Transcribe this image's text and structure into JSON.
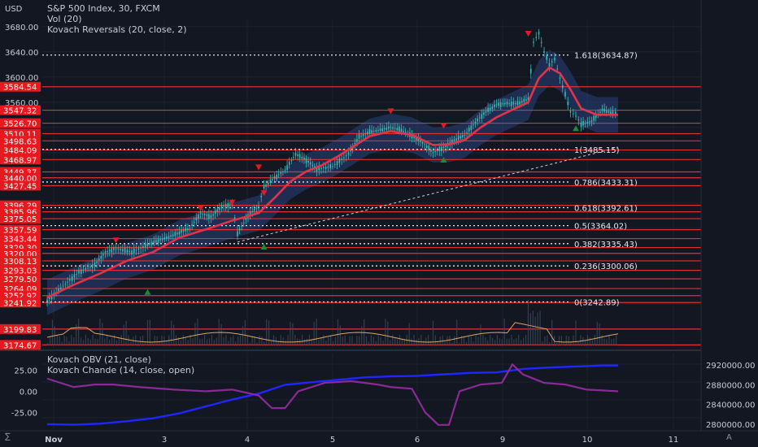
{
  "header": {
    "currency": "USD",
    "title": "S&P 500 Index, 30, FXCM",
    "indicators": [
      "Vol (20)",
      "Kovach Reversals (20, close, 2)"
    ]
  },
  "subpanel": {
    "indicators": [
      "Kovach OBV (21, close)",
      "Kovach Chande (14, close, open)"
    ]
  },
  "bottom_left_label": "∑",
  "auto_label": "A",
  "colors": {
    "background": "#131722",
    "level_line": "#e03030",
    "label_bg": "#e8191e",
    "ma_line": "#e0344a",
    "band_fill": "#2a3f7a",
    "candle": "#3dbab3",
    "volume_line": "#d9a46a",
    "obv_line": "#1f26ff",
    "chande_line": "#8a2a96",
    "fib_line": "#e6e8ee"
  },
  "chart_data": [
    {
      "type": "line",
      "title": "S&P 500 Index, 30, FXCM",
      "x_ticks": [
        "Nov",
        "3",
        "4",
        "5",
        "6",
        "9",
        "10",
        "11"
      ],
      "y_ticks": [
        "3680.00",
        "3640.00",
        "3600.00",
        "3560.00"
      ],
      "ylim": [
        3170,
        3690
      ],
      "price_series": [
        [
          0,
          3245
        ],
        [
          6,
          3268
        ],
        [
          12,
          3290
        ],
        [
          18,
          3302
        ],
        [
          22,
          3322
        ],
        [
          26,
          3328
        ],
        [
          32,
          3322
        ],
        [
          38,
          3334
        ],
        [
          46,
          3346
        ],
        [
          54,
          3360
        ],
        [
          58,
          3384
        ],
        [
          62,
          3378
        ],
        [
          66,
          3395
        ],
        [
          70,
          3398
        ],
        [
          72,
          3352
        ],
        [
          76,
          3380
        ],
        [
          80,
          3395
        ],
        [
          82,
          3425
        ],
        [
          86,
          3440
        ],
        [
          90,
          3452
        ],
        [
          94,
          3478
        ],
        [
          98,
          3468
        ],
        [
          102,
          3454
        ],
        [
          108,
          3458
        ],
        [
          114,
          3478
        ],
        [
          118,
          3505
        ],
        [
          122,
          3513
        ],
        [
          126,
          3516
        ],
        [
          130,
          3520
        ],
        [
          134,
          3516
        ],
        [
          138,
          3506
        ],
        [
          142,
          3496
        ],
        [
          146,
          3480
        ],
        [
          150,
          3488
        ],
        [
          154,
          3500
        ],
        [
          158,
          3508
        ],
        [
          162,
          3528
        ],
        [
          166,
          3545
        ],
        [
          170,
          3556
        ],
        [
          174,
          3558
        ],
        [
          178,
          3558
        ],
        [
          182,
          3565
        ],
        [
          184,
          3655
        ],
        [
          186,
          3670
        ],
        [
          188,
          3640
        ],
        [
          190,
          3620
        ],
        [
          192,
          3628
        ],
        [
          194,
          3598
        ],
        [
          196,
          3572
        ],
        [
          198,
          3545
        ],
        [
          200,
          3538
        ],
        [
          202,
          3525
        ],
        [
          206,
          3530
        ],
        [
          210,
          3548
        ],
        [
          214,
          3542
        ],
        [
          216,
          3545
        ]
      ],
      "ma_series": [
        [
          0,
          3250
        ],
        [
          10,
          3270
        ],
        [
          20,
          3288
        ],
        [
          30,
          3308
        ],
        [
          40,
          3322
        ],
        [
          50,
          3345
        ],
        [
          60,
          3358
        ],
        [
          70,
          3372
        ],
        [
          80,
          3384
        ],
        [
          86,
          3408
        ],
        [
          92,
          3434
        ],
        [
          98,
          3450
        ],
        [
          104,
          3460
        ],
        [
          110,
          3474
        ],
        [
          116,
          3490
        ],
        [
          122,
          3506
        ],
        [
          130,
          3514
        ],
        [
          138,
          3508
        ],
        [
          146,
          3492
        ],
        [
          152,
          3493
        ],
        [
          158,
          3500
        ],
        [
          164,
          3520
        ],
        [
          170,
          3536
        ],
        [
          176,
          3548
        ],
        [
          182,
          3560
        ],
        [
          186,
          3598
        ],
        [
          190,
          3615
        ],
        [
          194,
          3606
        ],
        [
          198,
          3580
        ],
        [
          202,
          3550
        ],
        [
          208,
          3540
        ],
        [
          216,
          3540
        ]
      ],
      "series": [
        {
          "name": "Vol (20)"
        },
        {
          "name": "Kovach Reversals (20, close, 2)"
        }
      ]
    },
    {
      "type": "line",
      "title": "Support / resistance levels",
      "levels": [
        "3584.54",
        "3547.32",
        "3526.70",
        "3510.11",
        "3498.63",
        "3484.09",
        "3468.97",
        "3449.37",
        "3440.00",
        "3427.45",
        "3396.29",
        "3385.96",
        "3375.05",
        "3357.59",
        "3343.44",
        "3329.30",
        "3320.00",
        "3308.13",
        "3293.03",
        "3279.50",
        "3264.09",
        "3252.92",
        "3241.92",
        "3199.83",
        "3174.67"
      ]
    },
    {
      "type": "line",
      "title": "Fibonacci retracement",
      "levels": [
        {
          "ratio": "1.618",
          "value": 3634.87,
          "label": "1.618(3634.87)"
        },
        {
          "ratio": "1",
          "value": 3485.15,
          "label": "1(3485.15)"
        },
        {
          "ratio": "0.786",
          "value": 3433.31,
          "label": "0.786(3433.31)"
        },
        {
          "ratio": "0.618",
          "value": 3392.61,
          "label": "0.618(3392.61)"
        },
        {
          "ratio": "0.5",
          "value": 3364.02,
          "label": "0.5(3364.02)"
        },
        {
          "ratio": "0.382",
          "value": 3335.43,
          "label": "0.382(3335.43)"
        },
        {
          "ratio": "0.236",
          "value": 3300.06,
          "label": "0.236(3300.06)"
        },
        {
          "ratio": "0",
          "value": 3242.89,
          "label": "0(3242.89)"
        }
      ]
    },
    {
      "type": "line",
      "title": "Kovach OBV (21, close) / Kovach Chande (14, close, open)",
      "left_ticks": [
        "25.00",
        "0.00",
        "-25.00"
      ],
      "right_ticks": [
        "2920000.00",
        "2880000.00",
        "2840000.00",
        "2800000.00"
      ],
      "left_ylim": [
        -45,
        40
      ],
      "right_ylim": [
        2790000,
        2935000
      ],
      "series": [
        {
          "name": "Kovach OBV (21, close)",
          "axis": "right",
          "values": [
            [
              0,
              2800000
            ],
            [
              10,
              2799000
            ],
            [
              20,
              2801000
            ],
            [
              30,
              2806000
            ],
            [
              40,
              2812000
            ],
            [
              50,
              2822000
            ],
            [
              60,
              2836000
            ],
            [
              70,
              2850000
            ],
            [
              80,
              2862000
            ],
            [
              90,
              2880000
            ],
            [
              100,
              2885000
            ],
            [
              110,
              2890000
            ],
            [
              120,
              2895000
            ],
            [
              130,
              2897000
            ],
            [
              140,
              2898000
            ],
            [
              150,
              2901000
            ],
            [
              160,
              2904000
            ],
            [
              170,
              2905000
            ],
            [
              180,
              2912000
            ],
            [
              190,
              2915000
            ],
            [
              200,
              2917000
            ],
            [
              210,
              2919000
            ],
            [
              216,
              2919000
            ]
          ]
        },
        {
          "name": "Kovach Chande (14, close, open)",
          "axis": "left",
          "values": [
            [
              0,
              15
            ],
            [
              10,
              5
            ],
            [
              18,
              8
            ],
            [
              25,
              8
            ],
            [
              35,
              5
            ],
            [
              48,
              2
            ],
            [
              60,
              0
            ],
            [
              70,
              2
            ],
            [
              80,
              -5
            ],
            [
              85,
              -20
            ],
            [
              90,
              -20
            ],
            [
              95,
              0
            ],
            [
              105,
              10
            ],
            [
              115,
              12
            ],
            [
              125,
              8
            ],
            [
              130,
              5
            ],
            [
              138,
              3
            ],
            [
              143,
              -25
            ],
            [
              148,
              -40
            ],
            [
              152,
              -40
            ],
            [
              156,
              0
            ],
            [
              164,
              8
            ],
            [
              172,
              10
            ],
            [
              176,
              32
            ],
            [
              180,
              20
            ],
            [
              188,
              10
            ],
            [
              196,
              8
            ],
            [
              204,
              2
            ],
            [
              210,
              1
            ],
            [
              216,
              0
            ]
          ]
        }
      ]
    }
  ]
}
